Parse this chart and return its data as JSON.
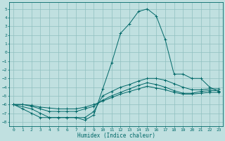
{
  "xlabel": "Humidex (Indice chaleur)",
  "bg_color": "#c0e0e0",
  "grid_color": "#90c0c0",
  "line_color": "#006868",
  "xlim": [
    -0.5,
    23.5
  ],
  "ylim": [
    -8.5,
    5.8
  ],
  "xticks": [
    0,
    1,
    2,
    3,
    4,
    5,
    6,
    7,
    8,
    9,
    10,
    11,
    12,
    13,
    14,
    15,
    16,
    17,
    18,
    19,
    20,
    21,
    22,
    23
  ],
  "yticks": [
    -8,
    -7,
    -6,
    -5,
    -4,
    -3,
    -2,
    -1,
    0,
    1,
    2,
    3,
    4,
    5
  ],
  "line1_x": [
    0,
    1,
    2,
    3,
    4,
    5,
    6,
    7,
    8,
    9,
    10,
    11,
    12,
    13,
    14,
    15,
    16,
    17,
    18,
    19,
    20,
    21,
    22,
    23
  ],
  "line1_y": [
    -6.0,
    -6.5,
    -7.0,
    -7.5,
    -7.5,
    -7.5,
    -7.5,
    -7.5,
    -7.8,
    -7.2,
    -4.2,
    -1.2,
    2.2,
    3.3,
    4.7,
    5.0,
    4.2,
    1.5,
    -2.5,
    -2.5,
    -3.0,
    -3.0,
    -4.0,
    -4.5
  ],
  "line2_x": [
    0,
    2,
    3,
    4,
    5,
    6,
    7,
    8,
    9,
    10,
    11,
    12,
    13,
    14,
    15,
    16,
    17,
    18,
    19,
    20,
    21,
    22,
    23
  ],
  "line2_y": [
    -6.0,
    -6.5,
    -7.0,
    -7.5,
    -7.5,
    -7.5,
    -7.5,
    -7.5,
    -6.8,
    -5.0,
    -4.5,
    -4.0,
    -3.7,
    -3.3,
    -3.0,
    -3.0,
    -3.2,
    -3.6,
    -4.0,
    -4.3,
    -4.3,
    -4.2,
    -4.2
  ],
  "line3_x": [
    0,
    1,
    2,
    3,
    4,
    5,
    6,
    7,
    8,
    9,
    10,
    11,
    12,
    13,
    14,
    15,
    16,
    17,
    18,
    19,
    20,
    21,
    22,
    23
  ],
  "line3_y": [
    -6.0,
    -6.0,
    -6.2,
    -6.5,
    -6.8,
    -6.8,
    -6.8,
    -6.8,
    -6.5,
    -6.2,
    -5.5,
    -5.0,
    -4.6,
    -4.2,
    -3.8,
    -3.5,
    -3.7,
    -4.0,
    -4.4,
    -4.7,
    -4.7,
    -4.5,
    -4.4,
    -4.4
  ],
  "line4_x": [
    0,
    1,
    2,
    3,
    4,
    5,
    6,
    7,
    8,
    9,
    10,
    11,
    12,
    13,
    14,
    15,
    16,
    17,
    18,
    19,
    20,
    21,
    22,
    23
  ],
  "line4_y": [
    -6.0,
    -6.0,
    -6.1,
    -6.3,
    -6.4,
    -6.5,
    -6.5,
    -6.5,
    -6.3,
    -6.0,
    -5.6,
    -5.2,
    -4.8,
    -4.5,
    -4.2,
    -3.9,
    -4.1,
    -4.3,
    -4.6,
    -4.8,
    -4.8,
    -4.7,
    -4.6,
    -4.6
  ]
}
